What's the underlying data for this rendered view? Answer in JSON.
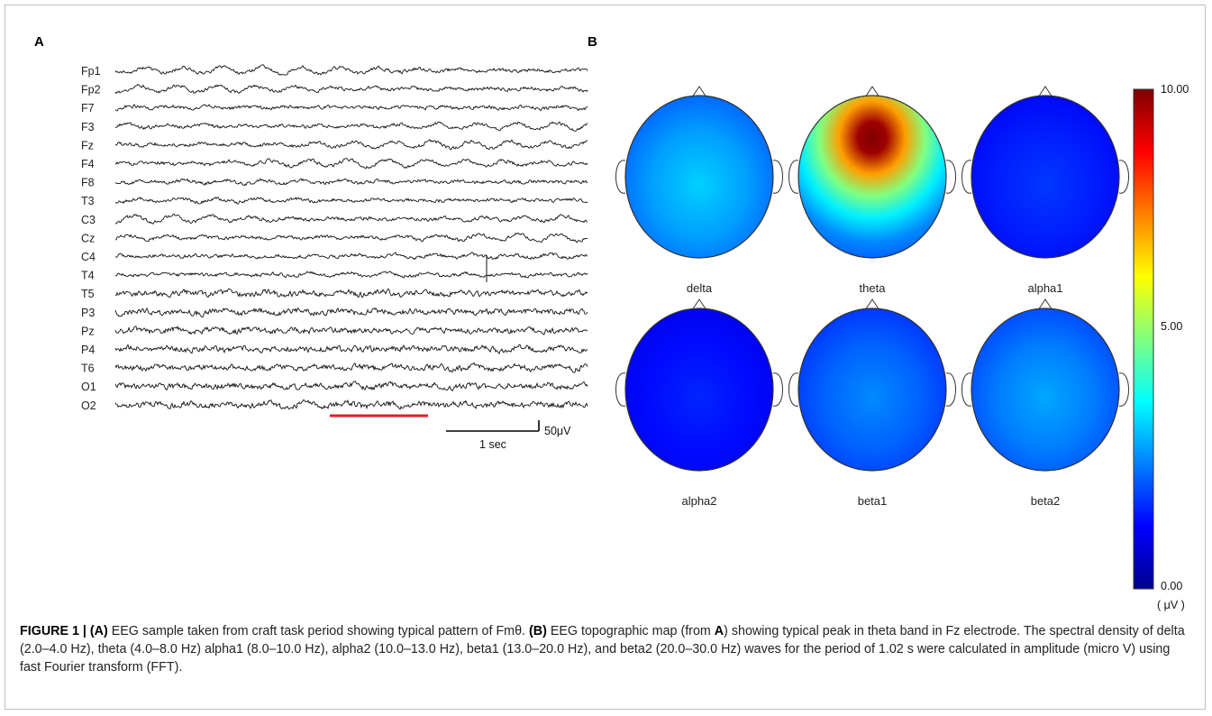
{
  "panel_a": {
    "letter": "A",
    "channels": [
      "Fp1",
      "Fp2",
      "F7",
      "F3",
      "Fz",
      "F4",
      "F8",
      "T3",
      "C3",
      "Cz",
      "C4",
      "T4",
      "T5",
      "P3",
      "Pz",
      "P4",
      "T6",
      "O1",
      "O2"
    ],
    "scale_amplitude": "50μV",
    "scale_time": "1 sec"
  },
  "panel_b": {
    "letter": "B",
    "maps": [
      {
        "band": "delta",
        "peak": 3.3
      },
      {
        "band": "theta",
        "peak": 10.0
      },
      {
        "band": "alpha1",
        "peak": 1.8
      },
      {
        "band": "alpha2",
        "peak": 1.6
      },
      {
        "band": "beta1",
        "peak": 2.6
      },
      {
        "band": "beta2",
        "peak": 2.9
      }
    ],
    "colorbar": {
      "max_label": "10.00",
      "mid_label": "5.00",
      "min_label": "0.00",
      "unit": "( μV )",
      "range": [
        0,
        10
      ]
    }
  },
  "caption": {
    "fig_label": "FIGURE 1 | ",
    "a_label": "(A)",
    "a_text": " EEG sample taken from craft task period showing typical pattern of Fmθ. ",
    "b_label": "(B)",
    "b_text_1": " EEG topographic map (from ",
    "b_ref": "A",
    "b_text_2": ") showing typical peak in theta band in Fz electrode. The spectral density of delta (2.0–4.0 Hz), theta (4.0–8.0 Hz) alpha1 (8.0–10.0 Hz), alpha2 (10.0–13.0 Hz), beta1 (13.0–20.0 Hz), and beta2 (20.0–30.0 Hz) waves for the period of 1.02 s were calculated in amplitude (micro V) using fast Fourier transform (FFT)."
  }
}
